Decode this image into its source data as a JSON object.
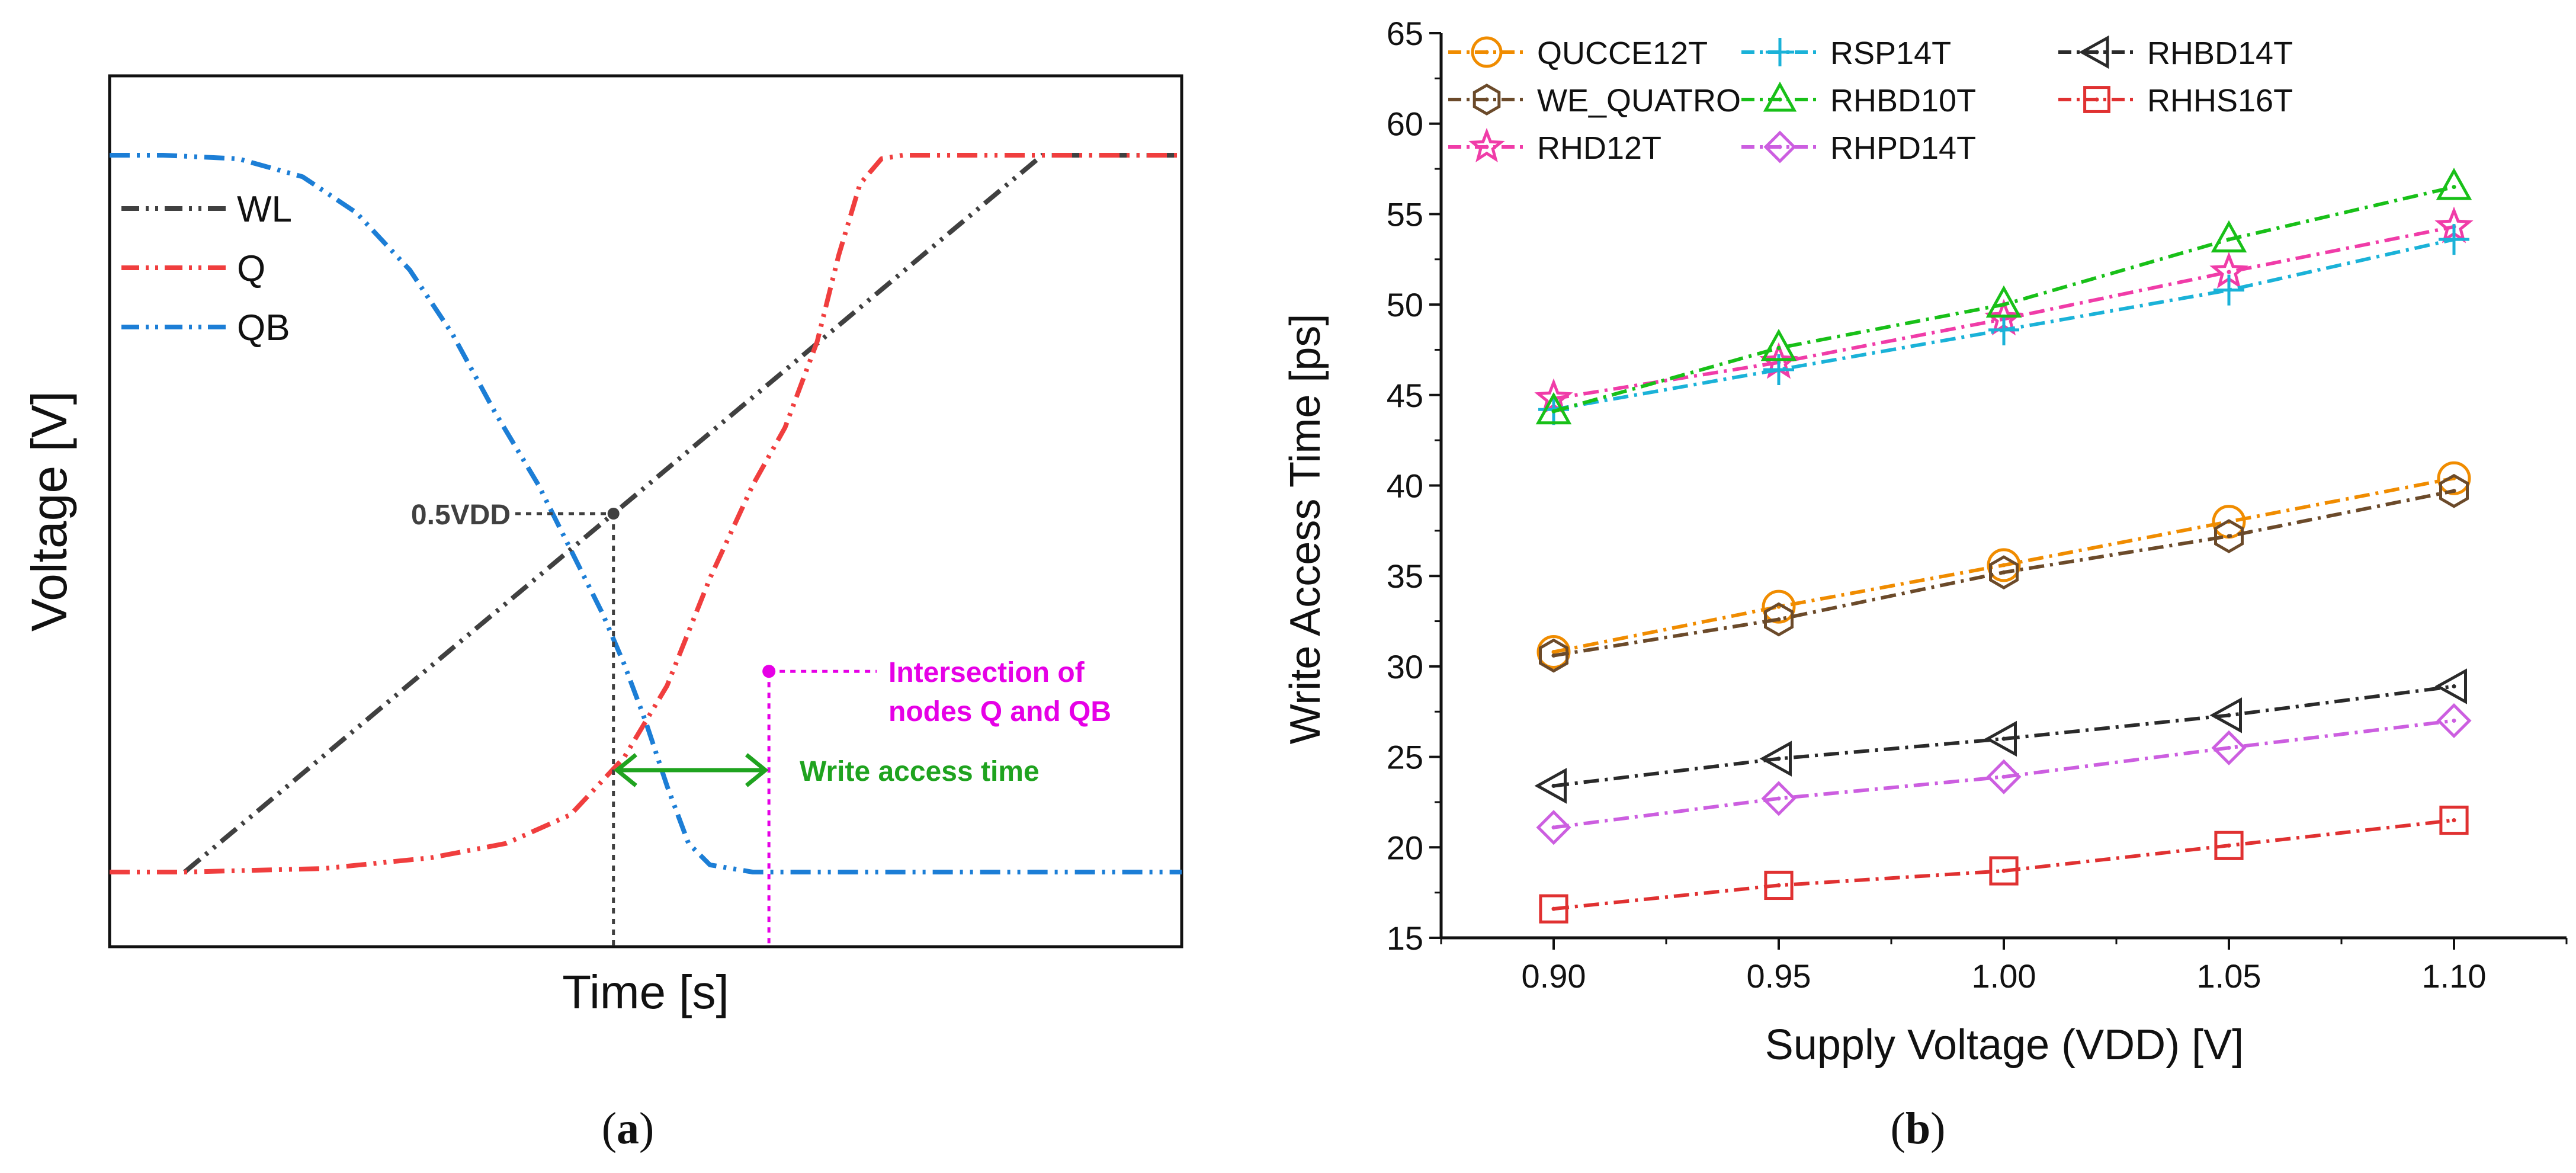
{
  "panel_a": {
    "label": "(a)",
    "label_letter": "a",
    "ylabel": "Voltage [V]",
    "xlabel": "Time [s]",
    "legend": [
      {
        "name": "WL",
        "color": "#404040"
      },
      {
        "name": "Q",
        "color": "#f03e3e"
      },
      {
        "name": "QB",
        "color": "#1c7ed6"
      }
    ],
    "annotations": {
      "half_vdd": "0.5VDD",
      "intersection_line1": "Intersection of",
      "intersection_line2": "nodes Q and QB",
      "write_access": "Write access time"
    },
    "colors": {
      "annot_gray": "#404040",
      "annot_magenta": "#e600e6",
      "annot_green": "#1fa31f"
    }
  },
  "panel_b": {
    "label": "(b)",
    "label_letter": "b"
  },
  "chart_data": [
    {
      "type": "line",
      "title": "",
      "xlabel": "Time [s]",
      "ylabel": "Voltage [V]",
      "xlim": [
        0,
        1
      ],
      "ylim": [
        0,
        1
      ],
      "axis_ticks": false,
      "series": [
        {
          "name": "WL",
          "color": "#404040",
          "x": [
            0.07,
            0.87,
            1.0
          ],
          "y": [
            0.0,
            1.0,
            1.0
          ]
        },
        {
          "name": "Q",
          "color": "#f03e3e",
          "x": [
            0.0,
            0.07,
            0.2,
            0.3,
            0.37,
            0.43,
            0.48,
            0.52,
            0.56,
            0.6,
            0.63,
            0.66,
            0.68,
            0.7,
            0.72,
            0.74,
            0.76,
            0.87,
            1.0
          ],
          "y": [
            0.0,
            0.0,
            0.005,
            0.02,
            0.04,
            0.08,
            0.16,
            0.26,
            0.41,
            0.54,
            0.62,
            0.74,
            0.86,
            0.96,
            0.995,
            1.0,
            1.0,
            1.0,
            1.0
          ]
        },
        {
          "name": "QB",
          "color": "#1c7ed6",
          "x": [
            0.0,
            0.05,
            0.12,
            0.18,
            0.23,
            0.28,
            0.32,
            0.36,
            0.4,
            0.43,
            0.46,
            0.48,
            0.5,
            0.52,
            0.54,
            0.56,
            0.6,
            0.7,
            1.0
          ],
          "y": [
            1.0,
            1.0,
            0.995,
            0.97,
            0.92,
            0.84,
            0.75,
            0.64,
            0.54,
            0.45,
            0.36,
            0.29,
            0.21,
            0.12,
            0.04,
            0.01,
            0.0,
            0.0,
            0.0
          ]
        }
      ]
    },
    {
      "type": "line",
      "title": "",
      "xlabel": "Supply Voltage (VDD) [V]",
      "ylabel": "Write Access Time [ps]",
      "xlim": [
        0.875,
        1.125
      ],
      "ylim": [
        15,
        65
      ],
      "xticks": [
        "0.90",
        "0.95",
        "1.00",
        "1.05",
        "1.10"
      ],
      "yticks": [
        "15",
        "20",
        "25",
        "30",
        "35",
        "40",
        "45",
        "50",
        "55",
        "60",
        "65"
      ],
      "x": [
        0.9,
        0.95,
        1.0,
        1.05,
        1.1
      ],
      "series": [
        {
          "name": "QUCCE12T",
          "color": "#f08c00",
          "marker": "circle",
          "values": [
            30.8,
            33.3,
            35.6,
            38.0,
            40.4
          ]
        },
        {
          "name": "WE_QUATRO",
          "color": "#6b4a2a",
          "marker": "hexagon",
          "values": [
            30.6,
            32.6,
            35.2,
            37.2,
            39.7
          ]
        },
        {
          "name": "RHD12T",
          "color": "#f03ca8",
          "marker": "star",
          "values": [
            44.8,
            46.8,
            49.2,
            51.8,
            54.3
          ]
        },
        {
          "name": "RSP14T",
          "color": "#1ab2d8",
          "marker": "plus",
          "values": [
            44.2,
            46.4,
            48.6,
            50.8,
            53.6
          ]
        },
        {
          "name": "RHBD10T",
          "color": "#18c018",
          "marker": "triangle-up",
          "values": [
            44.1,
            47.6,
            50.0,
            53.6,
            56.5
          ]
        },
        {
          "name": "RHPD14T",
          "color": "#cc5ee0",
          "marker": "diamond",
          "values": [
            21.1,
            22.7,
            23.9,
            25.5,
            27.0
          ]
        },
        {
          "name": "RHBD14T",
          "color": "#2a2a2a",
          "marker": "triangle-left",
          "values": [
            23.4,
            24.9,
            26.0,
            27.3,
            28.9
          ]
        },
        {
          "name": "RHHS16T",
          "color": "#e03131",
          "marker": "square",
          "values": [
            16.6,
            17.9,
            18.7,
            20.1,
            21.5
          ]
        }
      ]
    }
  ]
}
